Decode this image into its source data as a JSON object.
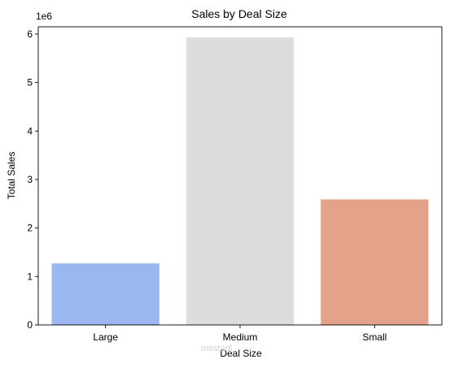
{
  "chart_data": {
    "type": "bar",
    "title": "Sales by Deal Size",
    "xlabel": "Deal Size",
    "ylabel": "Total Sales",
    "offset_label": "1e6",
    "categories": [
      "Large",
      "Medium",
      "Small"
    ],
    "values": [
      1.27,
      5.93,
      2.59
    ],
    "value_unit_multiplier": 1000000,
    "ylim": [
      0,
      6.15
    ],
    "yticks": [
      0,
      1,
      2,
      3,
      4,
      5,
      6
    ],
    "grid": false,
    "legend": "none",
    "colors": [
      "#9bb7f2",
      "#dddddd",
      "#e4a28a"
    ]
  },
  "watermark": {
    "text": "mostaql",
    "color": "#cfcfcf"
  }
}
